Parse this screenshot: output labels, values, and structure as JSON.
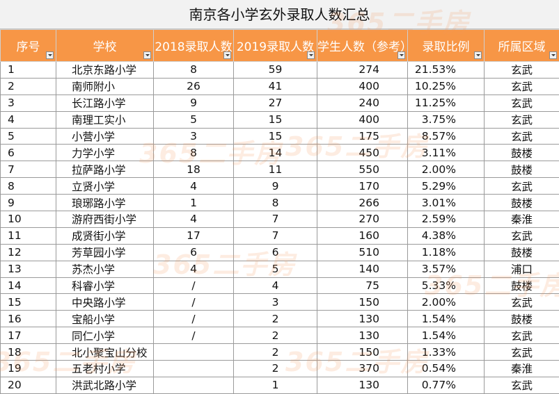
{
  "title": "南京各小学玄外录取人数汇总",
  "columns": [
    "序号",
    "学校",
    "2018录取人数",
    "2019录取人数",
    "学生人数（参考）",
    "录取比例",
    "所属区域"
  ],
  "rows": [
    [
      "1",
      "北京东路小学",
      "8",
      "59",
      "274",
      "21.53%",
      "玄武"
    ],
    [
      "2",
      "南师附小",
      "26",
      "41",
      "400",
      "10.25%",
      "玄武"
    ],
    [
      "3",
      "长江路小学",
      "9",
      "27",
      "240",
      "11.25%",
      "玄武"
    ],
    [
      "4",
      "南理工实小",
      "5",
      "15",
      "400",
      "3.75%",
      "玄武"
    ],
    [
      "5",
      "小营小学",
      "3",
      "15",
      "175",
      "8.57%",
      "玄武"
    ],
    [
      "6",
      "力学小学",
      "8",
      "14",
      "450",
      "3.11%",
      "鼓楼"
    ],
    [
      "7",
      "拉萨路小学",
      "18",
      "11",
      "550",
      "2.00%",
      "鼓楼"
    ],
    [
      "8",
      "立贤小学",
      "4",
      "9",
      "170",
      "5.29%",
      "玄武"
    ],
    [
      "9",
      "琅琊路小学",
      "1",
      "8",
      "266",
      "3.01%",
      "鼓楼"
    ],
    [
      "10",
      "游府西街小学",
      "4",
      "7",
      "270",
      "2.59%",
      "秦淮"
    ],
    [
      "11",
      "成贤街小学",
      "17",
      "7",
      "160",
      "4.38%",
      "玄武"
    ],
    [
      "12",
      "芳草园小学",
      "6",
      "6",
      "510",
      "1.18%",
      "鼓楼"
    ],
    [
      "13",
      "苏杰小学",
      "4",
      "5",
      "140",
      "3.57%",
      "浦口"
    ],
    [
      "14",
      "科睿小学",
      "/",
      "4",
      "75",
      "5.33%",
      "鼓楼"
    ],
    [
      "15",
      "中央路小学",
      "/",
      "3",
      "150",
      "2.00%",
      "玄武"
    ],
    [
      "16",
      "宝船小学",
      "/",
      "2",
      "130",
      "1.54%",
      "鼓楼"
    ],
    [
      "17",
      "同仁小学",
      "/",
      "2",
      "130",
      "1.54%",
      "玄武"
    ],
    [
      "18",
      "北小聚宝山分校",
      "",
      "2",
      "150",
      "1.33%",
      "玄武"
    ],
    [
      "19",
      "五老村小学",
      "",
      "2",
      "370",
      "0.54%",
      "秦淮"
    ],
    [
      "20",
      "洪武北路小学",
      "",
      "1",
      "130",
      "0.77%",
      "玄武"
    ]
  ],
  "watermark": {
    "text": "365二手房",
    "color": "#f5965a"
  }
}
